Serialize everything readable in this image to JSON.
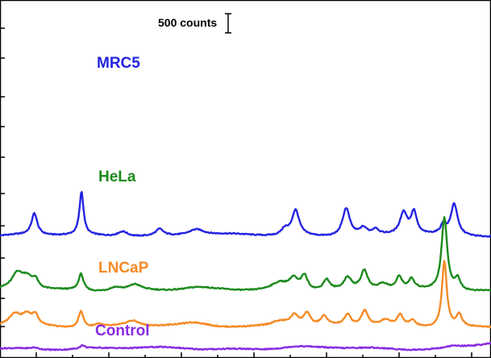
{
  "chart_data": {
    "type": "line",
    "title": "",
    "xlabel": "",
    "ylabel": "",
    "xlim": [
      0,
      100
    ],
    "grid": false,
    "legend": "inline labels on each trace",
    "scale_bar": {
      "label": "500 counts",
      "value": 500
    },
    "series": [
      {
        "name": "MRC5",
        "color": "#2424e0",
        "offset": 2880,
        "baseline": 60,
        "peaks": [
          [
            7,
            560,
            0.7
          ],
          [
            16.6,
            1130,
            0.5
          ],
          [
            25,
            140,
            1.3
          ],
          [
            32.5,
            170,
            0.9
          ],
          [
            40,
            170,
            2.0
          ],
          [
            58,
            160,
            0.8
          ],
          [
            60.2,
            660,
            0.9
          ],
          [
            70.5,
            730,
            0.9
          ],
          [
            74,
            180,
            0.9
          ],
          [
            76.5,
            140,
            0.7
          ],
          [
            82.2,
            580,
            0.9
          ],
          [
            84.3,
            580,
            0.7
          ],
          [
            90.3,
            240,
            0.6
          ],
          [
            92.5,
            810,
            0.8
          ]
        ]
      },
      {
        "name": "HeLa",
        "color": "#1c8a1c",
        "offset": 1510,
        "baseline": 0,
        "peaks": [
          [
            3.5,
            400,
            1.3
          ],
          [
            5.5,
            300,
            1.3
          ],
          [
            7.2,
            220,
            0.7
          ],
          [
            16.5,
            430,
            0.6
          ],
          [
            23.5,
            100,
            1.6
          ],
          [
            27.5,
            150,
            1.5
          ],
          [
            40,
            50,
            3.0
          ],
          [
            57,
            200,
            2.2
          ],
          [
            59.8,
            280,
            1.0
          ],
          [
            62,
            380,
            0.8
          ],
          [
            66.5,
            280,
            0.8
          ],
          [
            70.8,
            300,
            0.9
          ],
          [
            74.2,
            480,
            0.8
          ],
          [
            78,
            150,
            1.2
          ],
          [
            81.3,
            320,
            0.7
          ],
          [
            83.8,
            250,
            0.7
          ],
          [
            90.5,
            1900,
            0.7
          ],
          [
            93.2,
            300,
            0.7
          ]
        ]
      },
      {
        "name": "LNCaP",
        "color": "#f58a25",
        "offset": 560,
        "baseline": 0,
        "peaks": [
          [
            3,
            320,
            1.5
          ],
          [
            5.5,
            270,
            1.2
          ],
          [
            7.2,
            260,
            0.7
          ],
          [
            16.5,
            440,
            0.6
          ],
          [
            20,
            80,
            1.0
          ],
          [
            27,
            150,
            1.8
          ],
          [
            40,
            80,
            3.0
          ],
          [
            57,
            160,
            2.4
          ],
          [
            60,
            280,
            1.0
          ],
          [
            62.5,
            330,
            0.8
          ],
          [
            66,
            230,
            0.8
          ],
          [
            70.8,
            280,
            0.8
          ],
          [
            74.3,
            400,
            0.8
          ],
          [
            78.5,
            150,
            1.2
          ],
          [
            81.5,
            280,
            0.7
          ],
          [
            84,
            150,
            0.8
          ],
          [
            90.5,
            1720,
            0.6
          ],
          [
            93.5,
            320,
            0.7
          ]
        ]
      },
      {
        "name": "Control",
        "color": "#8a2be2",
        "offset": 0,
        "baseline": 0,
        "peaks": [
          [
            7,
            40,
            0.8
          ],
          [
            16.8,
            80,
            0.6
          ],
          [
            60,
            30,
            3.0
          ],
          [
            92,
            40,
            2.0
          ]
        ]
      }
    ]
  }
}
